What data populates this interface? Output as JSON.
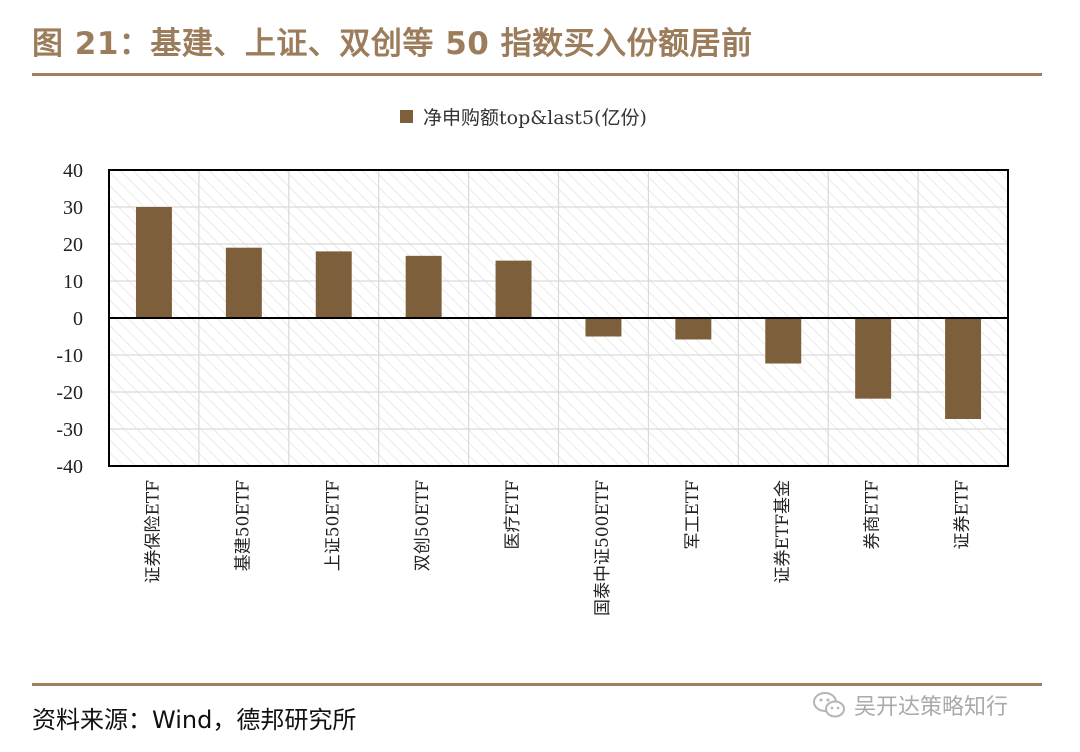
{
  "figure": {
    "title": "图 21：基建、上证、双创等 50 指数买入份额居前",
    "source": "资料来源：Wind，德邦研究所",
    "watermark": "吴开达策略知行",
    "watermark_icon": "wechat-icon"
  },
  "colors": {
    "title": "#9b7d5b",
    "rule": "#a07d5c",
    "bar": "#7d5f3c",
    "grid": "#d9d9d9",
    "hatch": "#e3e3e3"
  },
  "chart_data": {
    "type": "bar",
    "legend": [
      "净申购额top&last5(亿份)"
    ],
    "legend_position": "top-center",
    "categories": [
      "证券保险ETF",
      "基建50ETF",
      "上证50ETF",
      "双创50ETF",
      "医疗ETF",
      "国泰中证500ETF",
      "军工ETF",
      "证券ETF基金",
      "券商ETF",
      "证券ETF"
    ],
    "series": [
      {
        "name": "净申购额top&last5(亿份)",
        "values": [
          30,
          19,
          18,
          16.8,
          15.5,
          -5,
          -5.8,
          -12.3,
          -21.8,
          -27.3
        ]
      }
    ],
    "ylim": [
      -40,
      40
    ],
    "yticks": [
      "40",
      "30",
      "20",
      "10",
      "0",
      "-10",
      "-20",
      "-30",
      "-40"
    ],
    "grid": true,
    "xlabel": "",
    "ylabel": ""
  }
}
